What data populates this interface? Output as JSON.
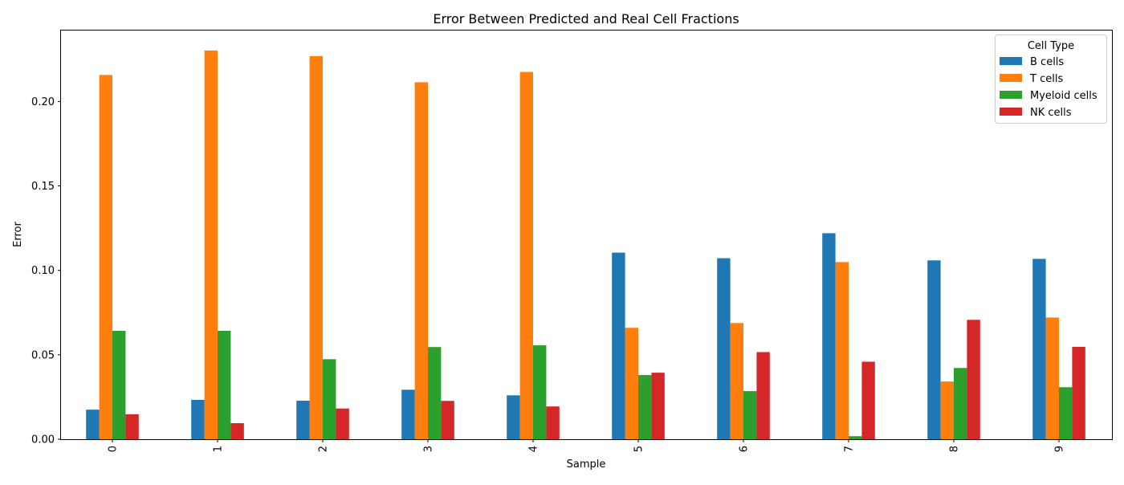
{
  "chart_data": {
    "type": "bar",
    "title": "Error Between Predicted and Real Cell Fractions",
    "xlabel": "Sample",
    "ylabel": "Error",
    "categories": [
      "0",
      "1",
      "2",
      "3",
      "4",
      "5",
      "6",
      "7",
      "8",
      "9"
    ],
    "ylim": [
      0,
      0.2425
    ],
    "yticks": [
      "0.00",
      "0.05",
      "0.10",
      "0.15",
      "0.20"
    ],
    "ytick_values": [
      0,
      0.05,
      0.1,
      0.15,
      0.2
    ],
    "grid": false,
    "legend": {
      "title": "Cell Type",
      "placement": "top-right"
    },
    "series": [
      {
        "name": "B cells",
        "color": "#1f77b4",
        "values": [
          0.0175,
          0.0233,
          0.0228,
          0.0293,
          0.026,
          0.1105,
          0.1072,
          0.122,
          0.1059,
          0.1068
        ]
      },
      {
        "name": "T cells",
        "color": "#ff7f0e",
        "values": [
          0.2157,
          0.2302,
          0.2269,
          0.2114,
          0.2175,
          0.066,
          0.0688,
          0.1049,
          0.0342,
          0.0721
        ]
      },
      {
        "name": "Myeloid cells",
        "color": "#2ca02c",
        "values": [
          0.0642,
          0.0642,
          0.0474,
          0.0546,
          0.0556,
          0.038,
          0.0285,
          0.0018,
          0.0422,
          0.0308
        ]
      },
      {
        "name": "NK cells",
        "color": "#d62728",
        "values": [
          0.0148,
          0.0095,
          0.0182,
          0.0227,
          0.0194,
          0.0394,
          0.0516,
          0.0459,
          0.0707,
          0.0547
        ]
      }
    ]
  }
}
